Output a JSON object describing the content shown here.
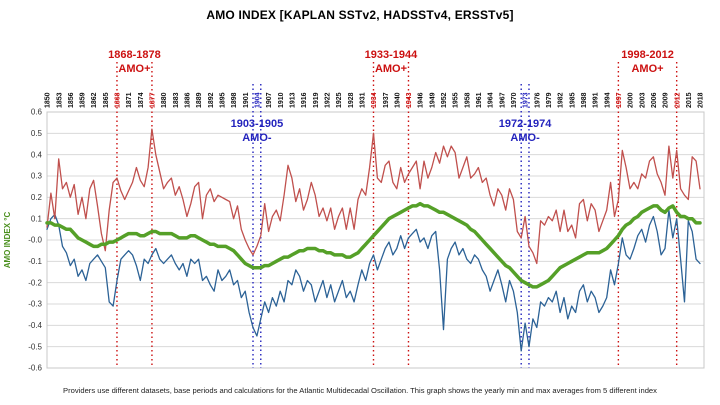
{
  "caption": "Providers use different datasets, base periods and calculations for the Atlantic Multidecadal Oscillation. This graph shows the yearly min and max averages from 5 different index",
  "colors": {
    "background": "#ffffff",
    "title_text": "#000000",
    "grid": "#d9d9d9",
    "plot_border": "#c8c8c8",
    "axis_tick_text": "#333333",
    "ylabel_text": "#4a8f1d",
    "max_line": "#c0504d",
    "min_line": "#2c6296",
    "avg_line": "#55a028",
    "amo_plus": "#cc1111",
    "amo_minus": "#2323bd"
  },
  "chart_data": {
    "type": "line",
    "title": "AMO INDEX [KAPLAN SSTv2, HADSSTv4, ERSSTv5]",
    "xlabel": "",
    "ylabel": "AMO INDEX °C",
    "ylim": [
      -0.6,
      0.6
    ],
    "ytick_step": 0.1,
    "x": {
      "start": 1850,
      "end": 2018,
      "step": 1
    },
    "xtick_every": 3,
    "grid": "horizontal-only",
    "legend_position": "none",
    "tick_highlight_colors": {
      "1868": "#cc1111",
      "1877": "#cc1111",
      "1904": "#2323bd",
      "1934": "#cc1111",
      "1943": "#cc1111",
      "1973": "#2323bd",
      "1997": "#cc1111",
      "2012": "#cc1111"
    },
    "annotations": [
      {
        "range": "1868-1878",
        "phase": "AMO+",
        "color": "#cc1111",
        "row": "top",
        "lines_at": [
          1868,
          1877
        ]
      },
      {
        "range": "1903-1905",
        "phase": "AMO-",
        "color": "#2323bd",
        "row": "bottom",
        "lines_at": [
          1903,
          1905
        ]
      },
      {
        "range": "1933-1944",
        "phase": "AMO+",
        "color": "#cc1111",
        "row": "top",
        "lines_at": [
          1934,
          1943
        ]
      },
      {
        "range": "1972-1974",
        "phase": "AMO-",
        "color": "#2323bd",
        "row": "bottom",
        "lines_at": [
          1972,
          1974
        ]
      },
      {
        "range": "1998-2012",
        "phase": "AMO+",
        "color": "#cc1111",
        "row": "top",
        "lines_at": [
          1997,
          2012
        ]
      }
    ],
    "series": [
      {
        "key": "max-series",
        "name": "yearly max of 5 AMO indices",
        "color": "#c0504d",
        "width": 1.3,
        "values": [
          0.06,
          0.22,
          0.1,
          0.38,
          0.24,
          0.27,
          0.2,
          0.26,
          0.12,
          0.2,
          0.1,
          0.24,
          0.28,
          0.16,
          0.03,
          -0.05,
          0.14,
          0.27,
          0.29,
          0.23,
          0.19,
          0.23,
          0.27,
          0.34,
          0.28,
          0.25,
          0.34,
          0.52,
          0.4,
          0.32,
          0.24,
          0.27,
          0.29,
          0.21,
          0.25,
          0.19,
          0.11,
          0.17,
          0.25,
          0.27,
          0.1,
          0.21,
          0.24,
          0.18,
          0.21,
          0.2,
          0.19,
          0.18,
          0.1,
          0.16,
          0.05,
          0.0,
          -0.04,
          -0.07,
          -0.03,
          0.02,
          0.17,
          0.04,
          0.11,
          0.14,
          0.09,
          0.21,
          0.35,
          0.29,
          0.18,
          0.24,
          0.14,
          0.19,
          0.27,
          0.21,
          0.11,
          0.15,
          0.09,
          0.15,
          0.05,
          0.11,
          0.15,
          0.05,
          0.15,
          0.05,
          0.19,
          0.24,
          0.21,
          0.34,
          0.5,
          0.29,
          0.27,
          0.35,
          0.37,
          0.27,
          0.24,
          0.34,
          0.27,
          0.31,
          0.34,
          0.37,
          0.24,
          0.37,
          0.29,
          0.34,
          0.41,
          0.36,
          0.44,
          0.39,
          0.44,
          0.41,
          0.29,
          0.34,
          0.39,
          0.29,
          0.31,
          0.34,
          0.27,
          0.29,
          0.21,
          0.16,
          0.24,
          0.21,
          0.14,
          0.24,
          0.19,
          0.04,
          0.01,
          0.11,
          -0.03,
          -0.06,
          -0.11,
          0.09,
          0.07,
          0.11,
          0.09,
          0.14,
          0.04,
          0.14,
          0.04,
          0.07,
          0.01,
          0.17,
          0.19,
          0.09,
          0.17,
          0.14,
          0.04,
          0.09,
          0.14,
          0.27,
          0.11,
          0.19,
          0.42,
          0.34,
          0.24,
          0.27,
          0.24,
          0.31,
          0.29,
          0.37,
          0.39,
          0.31,
          0.27,
          0.21,
          0.44,
          0.29,
          0.42,
          0.24,
          0.21,
          0.19,
          0.39,
          0.37,
          0.24
        ]
      },
      {
        "key": "min-series",
        "name": "yearly min of 5 AMO indices",
        "color": "#2c6296",
        "width": 1.3,
        "values": [
          0.05,
          0.1,
          0.12,
          0.07,
          -0.03,
          -0.06,
          -0.12,
          -0.09,
          -0.17,
          -0.14,
          -0.19,
          -0.11,
          -0.09,
          -0.07,
          -0.1,
          -0.13,
          -0.29,
          -0.31,
          -0.19,
          -0.09,
          -0.07,
          -0.05,
          -0.07,
          -0.12,
          -0.19,
          -0.09,
          -0.11,
          -0.07,
          -0.04,
          -0.09,
          -0.11,
          -0.09,
          -0.07,
          -0.11,
          -0.14,
          -0.11,
          -0.17,
          -0.09,
          -0.11,
          -0.09,
          -0.19,
          -0.17,
          -0.21,
          -0.24,
          -0.14,
          -0.19,
          -0.17,
          -0.14,
          -0.21,
          -0.19,
          -0.27,
          -0.24,
          -0.34,
          -0.41,
          -0.45,
          -0.37,
          -0.29,
          -0.34,
          -0.27,
          -0.31,
          -0.24,
          -0.29,
          -0.19,
          -0.21,
          -0.14,
          -0.17,
          -0.24,
          -0.19,
          -0.21,
          -0.29,
          -0.24,
          -0.19,
          -0.27,
          -0.21,
          -0.29,
          -0.24,
          -0.19,
          -0.27,
          -0.24,
          -0.29,
          -0.21,
          -0.14,
          -0.19,
          -0.11,
          -0.07,
          -0.14,
          -0.09,
          -0.04,
          -0.01,
          -0.07,
          -0.04,
          0.02,
          -0.04,
          0.01,
          0.03,
          0.05,
          -0.01,
          0.01,
          -0.04,
          0.02,
          0.04,
          -0.14,
          -0.42,
          -0.09,
          -0.04,
          -0.01,
          -0.07,
          -0.04,
          -0.09,
          -0.11,
          -0.07,
          -0.09,
          -0.14,
          -0.17,
          -0.24,
          -0.19,
          -0.14,
          -0.21,
          -0.29,
          -0.19,
          -0.24,
          -0.34,
          -0.52,
          -0.39,
          -0.5,
          -0.37,
          -0.41,
          -0.29,
          -0.31,
          -0.27,
          -0.29,
          -0.24,
          -0.34,
          -0.27,
          -0.37,
          -0.31,
          -0.34,
          -0.24,
          -0.21,
          -0.29,
          -0.24,
          -0.27,
          -0.34,
          -0.31,
          -0.27,
          -0.14,
          -0.21,
          -0.11,
          0.01,
          -0.07,
          -0.09,
          -0.04,
          0.02,
          0.05,
          -0.01,
          0.07,
          0.11,
          0.04,
          -0.07,
          -0.04,
          0.14,
          0.01,
          0.1,
          -0.09,
          -0.29,
          0.09,
          0.04,
          -0.09,
          -0.11
        ]
      },
      {
        "key": "smoothed-average-series",
        "name": "smoothed average of 5 AMO indices",
        "color": "#55a028",
        "width": 3.5,
        "values": [
          0.08,
          0.08,
          0.07,
          0.07,
          0.06,
          0.05,
          0.05,
          0.03,
          0.01,
          0.0,
          -0.01,
          -0.02,
          -0.03,
          -0.03,
          -0.02,
          -0.02,
          -0.01,
          -0.01,
          0.0,
          0.01,
          0.02,
          0.03,
          0.03,
          0.03,
          0.02,
          0.02,
          0.03,
          0.04,
          0.04,
          0.03,
          0.03,
          0.03,
          0.03,
          0.02,
          0.01,
          0.01,
          0.01,
          0.02,
          0.02,
          0.01,
          0.0,
          -0.01,
          -0.02,
          -0.02,
          -0.03,
          -0.03,
          -0.03,
          -0.04,
          -0.05,
          -0.07,
          -0.09,
          -0.11,
          -0.12,
          -0.13,
          -0.13,
          -0.13,
          -0.12,
          -0.12,
          -0.11,
          -0.1,
          -0.09,
          -0.08,
          -0.08,
          -0.07,
          -0.06,
          -0.05,
          -0.05,
          -0.04,
          -0.04,
          -0.04,
          -0.05,
          -0.05,
          -0.06,
          -0.06,
          -0.07,
          -0.07,
          -0.07,
          -0.08,
          -0.08,
          -0.07,
          -0.06,
          -0.04,
          -0.02,
          0.0,
          0.02,
          0.04,
          0.06,
          0.08,
          0.1,
          0.11,
          0.12,
          0.13,
          0.14,
          0.15,
          0.16,
          0.16,
          0.17,
          0.16,
          0.16,
          0.15,
          0.14,
          0.13,
          0.13,
          0.12,
          0.11,
          0.1,
          0.09,
          0.08,
          0.07,
          0.05,
          0.04,
          0.02,
          0.0,
          -0.02,
          -0.04,
          -0.06,
          -0.08,
          -0.1,
          -0.12,
          -0.13,
          -0.15,
          -0.17,
          -0.19,
          -0.2,
          -0.21,
          -0.22,
          -0.22,
          -0.21,
          -0.2,
          -0.19,
          -0.17,
          -0.15,
          -0.13,
          -0.12,
          -0.11,
          -0.1,
          -0.09,
          -0.08,
          -0.07,
          -0.06,
          -0.06,
          -0.06,
          -0.06,
          -0.05,
          -0.04,
          -0.02,
          0.0,
          0.02,
          0.05,
          0.07,
          0.08,
          0.1,
          0.11,
          0.13,
          0.14,
          0.15,
          0.16,
          0.16,
          0.14,
          0.13,
          0.15,
          0.16,
          0.13,
          0.11,
          0.11,
          0.1,
          0.1,
          0.08,
          0.08
        ]
      }
    ]
  }
}
